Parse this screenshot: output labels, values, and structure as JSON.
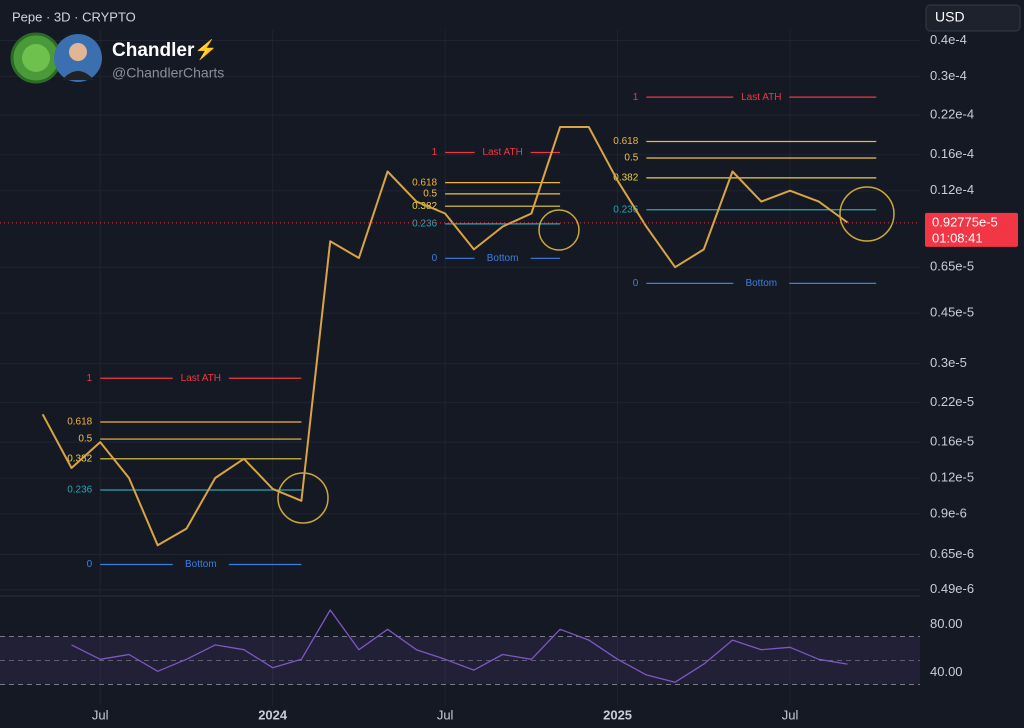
{
  "header": {
    "symbol": "Pepe · 3D · CRYPTO",
    "author": "Chandler⚡",
    "handle": "@ChandlerCharts",
    "currency": "USD"
  },
  "chart_data": [
    {
      "type": "line",
      "log_scale": true,
      "grid": true,
      "color": "#d9a441",
      "x": [
        "2023-05",
        "2023-06",
        "2023-07",
        "2023-08",
        "2023-09",
        "2023-10",
        "2023-11",
        "2023-12",
        "2024-01",
        "2024-02",
        "2024-03",
        "2024-04",
        "2024-05",
        "2024-06",
        "2024-07",
        "2024-08",
        "2024-09",
        "2024-10",
        "2024-11",
        "2024-12",
        "2025-01",
        "2025-02",
        "2025-03",
        "2025-04",
        "2025-05",
        "2025-06",
        "2025-07",
        "2025-08",
        "2025-09"
      ],
      "values": [
        2e-06,
        1.3e-06,
        1.6e-06,
        1.2e-06,
        7e-07,
        8e-07,
        1.2e-06,
        1.4e-06,
        1.1e-06,
        1e-06,
        8e-06,
        7e-06,
        1.4e-05,
        1.1e-05,
        1e-05,
        7.5e-06,
        9e-06,
        1e-05,
        2e-05,
        2e-05,
        1.3e-05,
        9e-06,
        6.5e-06,
        7.5e-06,
        1.4e-05,
        1.1e-05,
        1.2e-05,
        1.1e-05,
        9.3e-06
      ],
      "xlim": [
        "2023-04",
        "2025-11"
      ],
      "xticks": [
        {
          "value": "2023-07",
          "label": "Jul"
        },
        {
          "value": "2024-01",
          "label": "2024"
        },
        {
          "value": "2024-07",
          "label": "Jul"
        },
        {
          "value": "2025-01",
          "label": "2025"
        },
        {
          "value": "2025-07",
          "label": "Jul"
        }
      ],
      "ylim": [
        4.7e-07,
        4.35e-05
      ],
      "yticks": [
        {
          "value": 4e-05,
          "label": "0.4e-4"
        },
        {
          "value": 3e-05,
          "label": "0.3e-4"
        },
        {
          "value": 2.2e-05,
          "label": "0.22e-4"
        },
        {
          "value": 1.6e-05,
          "label": "0.16e-4"
        },
        {
          "value": 1.2e-05,
          "label": "0.12e-4"
        },
        {
          "value": 6.5e-06,
          "label": "0.65e-5"
        },
        {
          "value": 4.5e-06,
          "label": "0.45e-5"
        },
        {
          "value": 3e-06,
          "label": "0.3e-5"
        },
        {
          "value": 2.2e-06,
          "label": "0.22e-5"
        },
        {
          "value": 1.6e-06,
          "label": "0.16e-5"
        },
        {
          "value": 1.2e-06,
          "label": "0.12e-5"
        },
        {
          "value": 9e-07,
          "label": "0.9e-6"
        },
        {
          "value": 6.5e-07,
          "label": "0.65e-6"
        },
        {
          "value": 4.9e-07,
          "label": "0.49e-6"
        }
      ],
      "last_price": {
        "value": 9.2775e-06,
        "label": "0.92775e-5"
      },
      "countdown": "01:08:41",
      "fib_sets": [
        {
          "x": [
            "2023-07",
            "2024-02"
          ],
          "levels": [
            {
              "ratio": 1,
              "price": 2.67e-06,
              "color": "#f23645",
              "note": "Last ATH"
            },
            {
              "ratio": 0.618,
              "price": 1.88e-06,
              "color": "#f0b43c"
            },
            {
              "ratio": 0.5,
              "price": 1.64e-06,
              "color": "#f0c04a"
            },
            {
              "ratio": 0.382,
              "price": 1.4e-06,
              "color": "#e8cf4a"
            },
            {
              "ratio": 0.236,
              "price": 1.09e-06,
              "color": "#26a6b5"
            },
            {
              "ratio": 0,
              "price": 6e-07,
              "color": "#3d7ee0",
              "note": "Bottom"
            }
          ]
        },
        {
          "x": [
            "2024-07",
            "2024-11"
          ],
          "levels": [
            {
              "ratio": 1,
              "price": 1.63e-05,
              "color": "#f23645",
              "note": "Last ATH"
            },
            {
              "ratio": 0.618,
              "price": 1.28e-05,
              "color": "#f0b43c"
            },
            {
              "ratio": 0.5,
              "price": 1.17e-05,
              "color": "#f0c04a"
            },
            {
              "ratio": 0.382,
              "price": 1.06e-05,
              "color": "#e8cf4a"
            },
            {
              "ratio": 0.236,
              "price": 9.2e-06,
              "color": "#26a6b5"
            },
            {
              "ratio": 0,
              "price": 6.98e-06,
              "color": "#3d7ee0",
              "note": "Bottom"
            }
          ]
        },
        {
          "x": [
            "2025-02",
            "2025-10"
          ],
          "levels": [
            {
              "ratio": 1,
              "price": 2.54e-05,
              "color": "#f23645",
              "note": "Last ATH"
            },
            {
              "ratio": 0.618,
              "price": 1.78e-05,
              "color": "#f0b43c"
            },
            {
              "ratio": 0.5,
              "price": 1.56e-05,
              "color": "#f0c04a"
            },
            {
              "ratio": 0.382,
              "price": 1.33e-05,
              "color": "#e8cf4a"
            },
            {
              "ratio": 0.236,
              "price": 1.03e-05,
              "color": "#26a6b5"
            },
            {
              "ratio": 0,
              "price": 5.71e-06,
              "color": "#3d7ee0",
              "note": "Bottom"
            }
          ]
        }
      ]
    },
    {
      "type": "line",
      "color": "#7e57c2",
      "x": [
        "2023-05",
        "2023-06",
        "2023-07",
        "2023-08",
        "2023-09",
        "2023-10",
        "2023-11",
        "2023-12",
        "2024-01",
        "2024-02",
        "2024-03",
        "2024-04",
        "2024-05",
        "2024-06",
        "2024-07",
        "2024-08",
        "2024-09",
        "2024-10",
        "2024-11",
        "2024-12",
        "2025-01",
        "2025-02",
        "2025-03",
        "2025-04",
        "2025-05",
        "2025-06",
        "2025-07",
        "2025-08",
        "2025-09"
      ],
      "values": [
        null,
        63,
        51,
        55,
        41,
        51,
        63,
        59,
        44,
        51,
        92,
        59,
        76,
        59,
        51,
        42,
        55,
        51,
        76,
        67,
        51,
        38,
        32,
        47,
        67,
        59,
        61,
        51,
        47
      ],
      "ylim": [
        13,
        102
      ],
      "yticks": [
        {
          "value": 80,
          "label": "80.00"
        },
        {
          "value": 40,
          "label": "40.00"
        }
      ],
      "bands": [
        30,
        70
      ],
      "midline": 50
    }
  ]
}
